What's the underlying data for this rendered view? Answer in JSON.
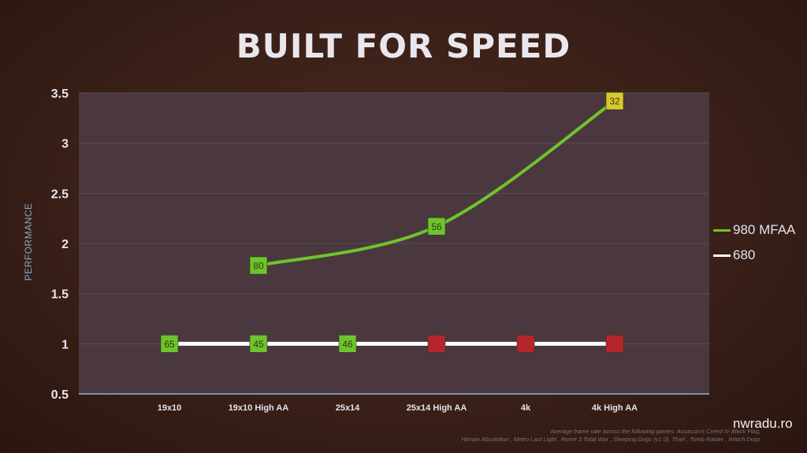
{
  "chart_data": {
    "type": "line",
    "title": "BUILT FOR SPEED",
    "ylabel": "PERFORMANCE",
    "xlabel": "",
    "categories": [
      "19x10",
      "19x10 High AA",
      "25x14",
      "25x14 High AA",
      "4k",
      "4k High AA"
    ],
    "yticks": [
      "3.5",
      "3",
      "2.5",
      "2",
      "1.5",
      "1",
      "0.5"
    ],
    "ylim": [
      0.5,
      3.5
    ],
    "grid": true,
    "legend_position": "right",
    "series": [
      {
        "name": "980 MFAA",
        "color": "#6fc32d",
        "values": [
          null,
          1.78,
          null,
          2.17,
          null,
          3.42
        ],
        "labels": [
          null,
          "80",
          null,
          "56",
          null,
          "32"
        ],
        "marker_colors": [
          null,
          "#6fc32d",
          null,
          "#6fc32d",
          null,
          "#d9c82a"
        ]
      },
      {
        "name": "680",
        "color": "#ffffff",
        "values": [
          1.0,
          1.0,
          1.0,
          1.0,
          1.0,
          1.0
        ],
        "labels": [
          "65",
          "45",
          "46",
          "",
          "",
          ""
        ],
        "marker_colors": [
          "#6fc32d",
          "#6fc32d",
          "#6fc32d",
          "#b5262c",
          "#b5262c",
          "#b5262c"
        ]
      }
    ]
  },
  "legend": {
    "item1": "980 MFAA",
    "item2": "680"
  },
  "footnote": {
    "line1": "Average frame rate across the following games: Assassin's Creed IV Black Flag,",
    "line2": "Hitman Absolution , Metro Last Light , Rome 2 Total War , Sleeping Dogs (v1.0), Thief , Tomb Raider , Watch Dogs"
  },
  "watermark": "nwradu.ro"
}
